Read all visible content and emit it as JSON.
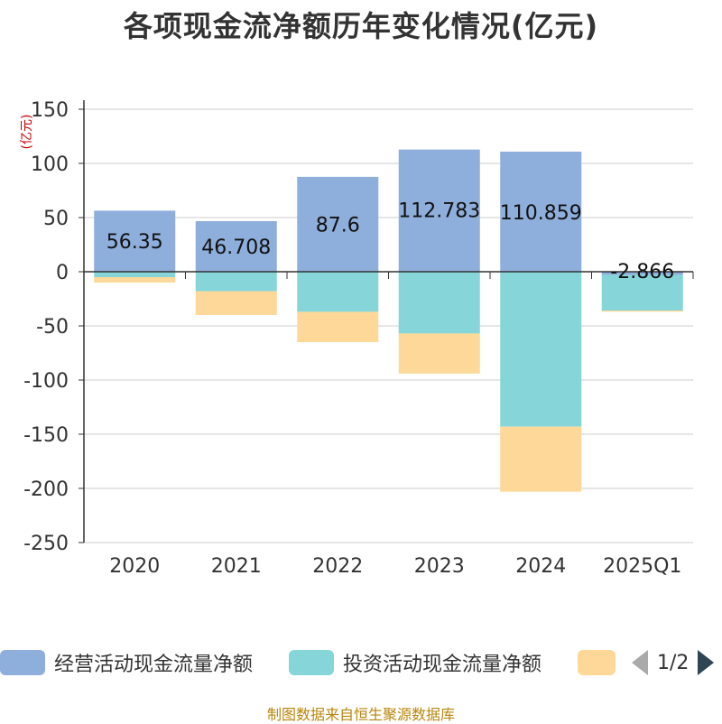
{
  "chart_data": {
    "type": "bar",
    "title": "各项现金流净额历年变化情况(亿元)",
    "ylabel": "(亿元)",
    "xlabel": "",
    "ylim": [
      -250,
      150
    ],
    "yticks": [
      150,
      100,
      50,
      0,
      -50,
      -100,
      -150,
      -200,
      -250
    ],
    "categories": [
      "2020",
      "2021",
      "2022",
      "2023",
      "2024",
      "2025Q1"
    ],
    "stacked": true,
    "series": [
      {
        "name": "经营活动现金流量净额",
        "color": "#8eaedb",
        "values": [
          56.35,
          46.708,
          87.6,
          112.783,
          110.859,
          -2.866
        ],
        "labels": [
          "56.35",
          "46.708",
          "87.6",
          "112.783",
          "110.859",
          "-2.866"
        ]
      },
      {
        "name": "投资活动现金流量净额",
        "color": "#86d5d8",
        "values": [
          -5,
          -18,
          -37,
          -57,
          -143,
          -33
        ],
        "labels": []
      },
      {
        "name": "",
        "color": "#fdd898",
        "values": [
          -5,
          -22,
          -28,
          -37,
          -60,
          -1
        ],
        "labels": []
      }
    ]
  },
  "legend": {
    "items": [
      "经营活动现金流量净额",
      "投资活动现金流量净额",
      ""
    ],
    "page": "1/2"
  },
  "source": "制图数据来自恒生聚源数据库"
}
